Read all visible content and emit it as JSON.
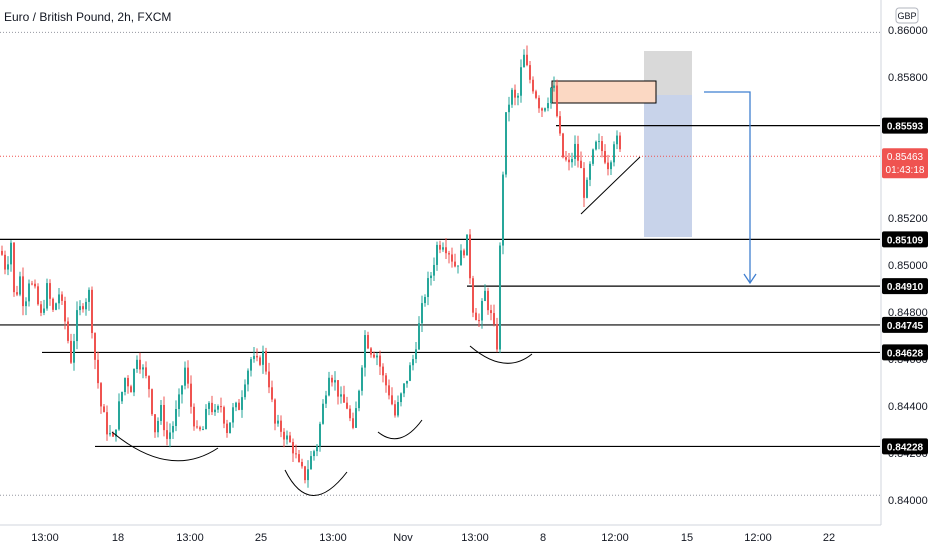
{
  "header": {
    "title": "Euro / British Pound, 2h, FXCM",
    "currency": "GBP"
  },
  "colors": {
    "up": "#26a69a",
    "down": "#ef5350",
    "level_line": "#000000",
    "label_bg": "#000000",
    "current_price": "#ef5350",
    "zone_orange": "#fbd8c3",
    "target_blue": "#c8d3ea",
    "stop_gray": "#d9d9d9",
    "arrow": "#3f7fd0"
  },
  "chart_data": {
    "type": "candlestick",
    "title": "Euro / British Pound, 2h, FXCM",
    "ylim": [
      0.8397,
      0.8606
    ],
    "y_ticks": [
      "0.86000",
      "0.85800",
      "0.85600",
      "0.85400",
      "0.85200",
      "0.85000",
      "0.84800",
      "0.84600",
      "0.84400",
      "0.84200",
      "0.84000"
    ],
    "x_ticks": [
      "13:00",
      "18",
      "13:00",
      "25",
      "13:00",
      "Nov",
      "13:00",
      "8",
      "12:00",
      "15",
      "12:00",
      "22"
    ],
    "levels": [
      {
        "value": 0.85593,
        "label": "0.85593"
      },
      {
        "value": 0.85109,
        "label": "0.85109"
      },
      {
        "value": 0.8491,
        "label": "0.84910"
      },
      {
        "value": 0.84745,
        "label": "0.84745"
      },
      {
        "value": 0.84628,
        "label": "0.84628"
      },
      {
        "value": 0.84228,
        "label": "0.84228"
      }
    ],
    "current_price": {
      "value": 0.85463,
      "label": "0.85463",
      "countdown": "01:43:18"
    },
    "dotted_levels": [
      0.8599,
      0.8402
    ],
    "price_path": [
      [
        0,
        0.8506
      ],
      [
        5,
        0.8498
      ],
      [
        10,
        0.851
      ],
      [
        14,
        0.848
      ],
      [
        18,
        0.8498
      ],
      [
        23,
        0.8482
      ],
      [
        28,
        0.8494
      ],
      [
        34,
        0.8488
      ],
      [
        40,
        0.8478
      ],
      [
        46,
        0.849
      ],
      [
        52,
        0.848
      ],
      [
        58,
        0.8488
      ],
      [
        64,
        0.8476
      ],
      [
        70,
        0.846
      ],
      [
        76,
        0.8478
      ],
      [
        82,
        0.8484
      ],
      [
        88,
        0.8488
      ],
      [
        94,
        0.846
      ],
      [
        100,
        0.844
      ],
      [
        106,
        0.843
      ],
      [
        112,
        0.8425
      ],
      [
        118,
        0.844
      ],
      [
        124,
        0.8452
      ],
      [
        130,
        0.8448
      ],
      [
        136,
        0.8462
      ],
      [
        142,
        0.8455
      ],
      [
        148,
        0.8448
      ],
      [
        154,
        0.843
      ],
      [
        160,
        0.8438
      ],
      [
        166,
        0.8426
      ],
      [
        172,
        0.8432
      ],
      [
        178,
        0.8442
      ],
      [
        184,
        0.8456
      ],
      [
        190,
        0.844
      ],
      [
        196,
        0.8428
      ],
      [
        202,
        0.843
      ],
      [
        208,
        0.8442
      ],
      [
        214,
        0.8436
      ],
      [
        220,
        0.844
      ],
      [
        226,
        0.843
      ],
      [
        232,
        0.8438
      ],
      [
        238,
        0.844
      ],
      [
        244,
        0.8452
      ],
      [
        250,
        0.846
      ],
      [
        256,
        0.8458
      ],
      [
        262,
        0.8462
      ],
      [
        268,
        0.845
      ],
      [
        274,
        0.8432
      ],
      [
        280,
        0.843
      ],
      [
        286,
        0.8426
      ],
      [
        292,
        0.8422
      ],
      [
        298,
        0.8414
      ],
      [
        304,
        0.841
      ],
      [
        310,
        0.8418
      ],
      [
        316,
        0.8424
      ],
      [
        322,
        0.844
      ],
      [
        328,
        0.8455
      ],
      [
        334,
        0.845
      ],
      [
        340,
        0.8442
      ],
      [
        346,
        0.844
      ],
      [
        352,
        0.8428
      ],
      [
        358,
        0.8448
      ],
      [
        364,
        0.847
      ],
      [
        370,
        0.8464
      ],
      [
        376,
        0.8462
      ],
      [
        382,
        0.8452
      ],
      [
        388,
        0.8446
      ],
      [
        394,
        0.8436
      ],
      [
        400,
        0.8444
      ],
      [
        406,
        0.8452
      ],
      [
        412,
        0.846
      ],
      [
        418,
        0.8474
      ],
      [
        424,
        0.8488
      ],
      [
        430,
        0.8496
      ],
      [
        436,
        0.8508
      ],
      [
        442,
        0.851
      ],
      [
        448,
        0.8506
      ],
      [
        454,
        0.85
      ],
      [
        460,
        0.8504
      ],
      [
        466,
        0.851
      ],
      [
        472,
        0.8482
      ],
      [
        478,
        0.8476
      ],
      [
        484,
        0.8488
      ],
      [
        490,
        0.8478
      ],
      [
        496,
        0.8466
      ],
      [
        500,
        0.852
      ],
      [
        504,
        0.856
      ],
      [
        510,
        0.8574
      ],
      [
        516,
        0.8568
      ],
      [
        522,
        0.859
      ],
      [
        528,
        0.858
      ],
      [
        534,
        0.8574
      ],
      [
        540,
        0.8566
      ],
      [
        546,
        0.857
      ],
      [
        552,
        0.8578
      ],
      [
        558,
        0.8556
      ],
      [
        562,
        0.8546
      ],
      [
        568,
        0.8542
      ],
      [
        574,
        0.855
      ],
      [
        580,
        0.854
      ],
      [
        584,
        0.8528
      ],
      [
        590,
        0.8544
      ],
      [
        596,
        0.8552
      ],
      [
        602,
        0.8548
      ],
      [
        608,
        0.8542
      ],
      [
        614,
        0.8556
      ],
      [
        620,
        0.8546
      ]
    ]
  }
}
